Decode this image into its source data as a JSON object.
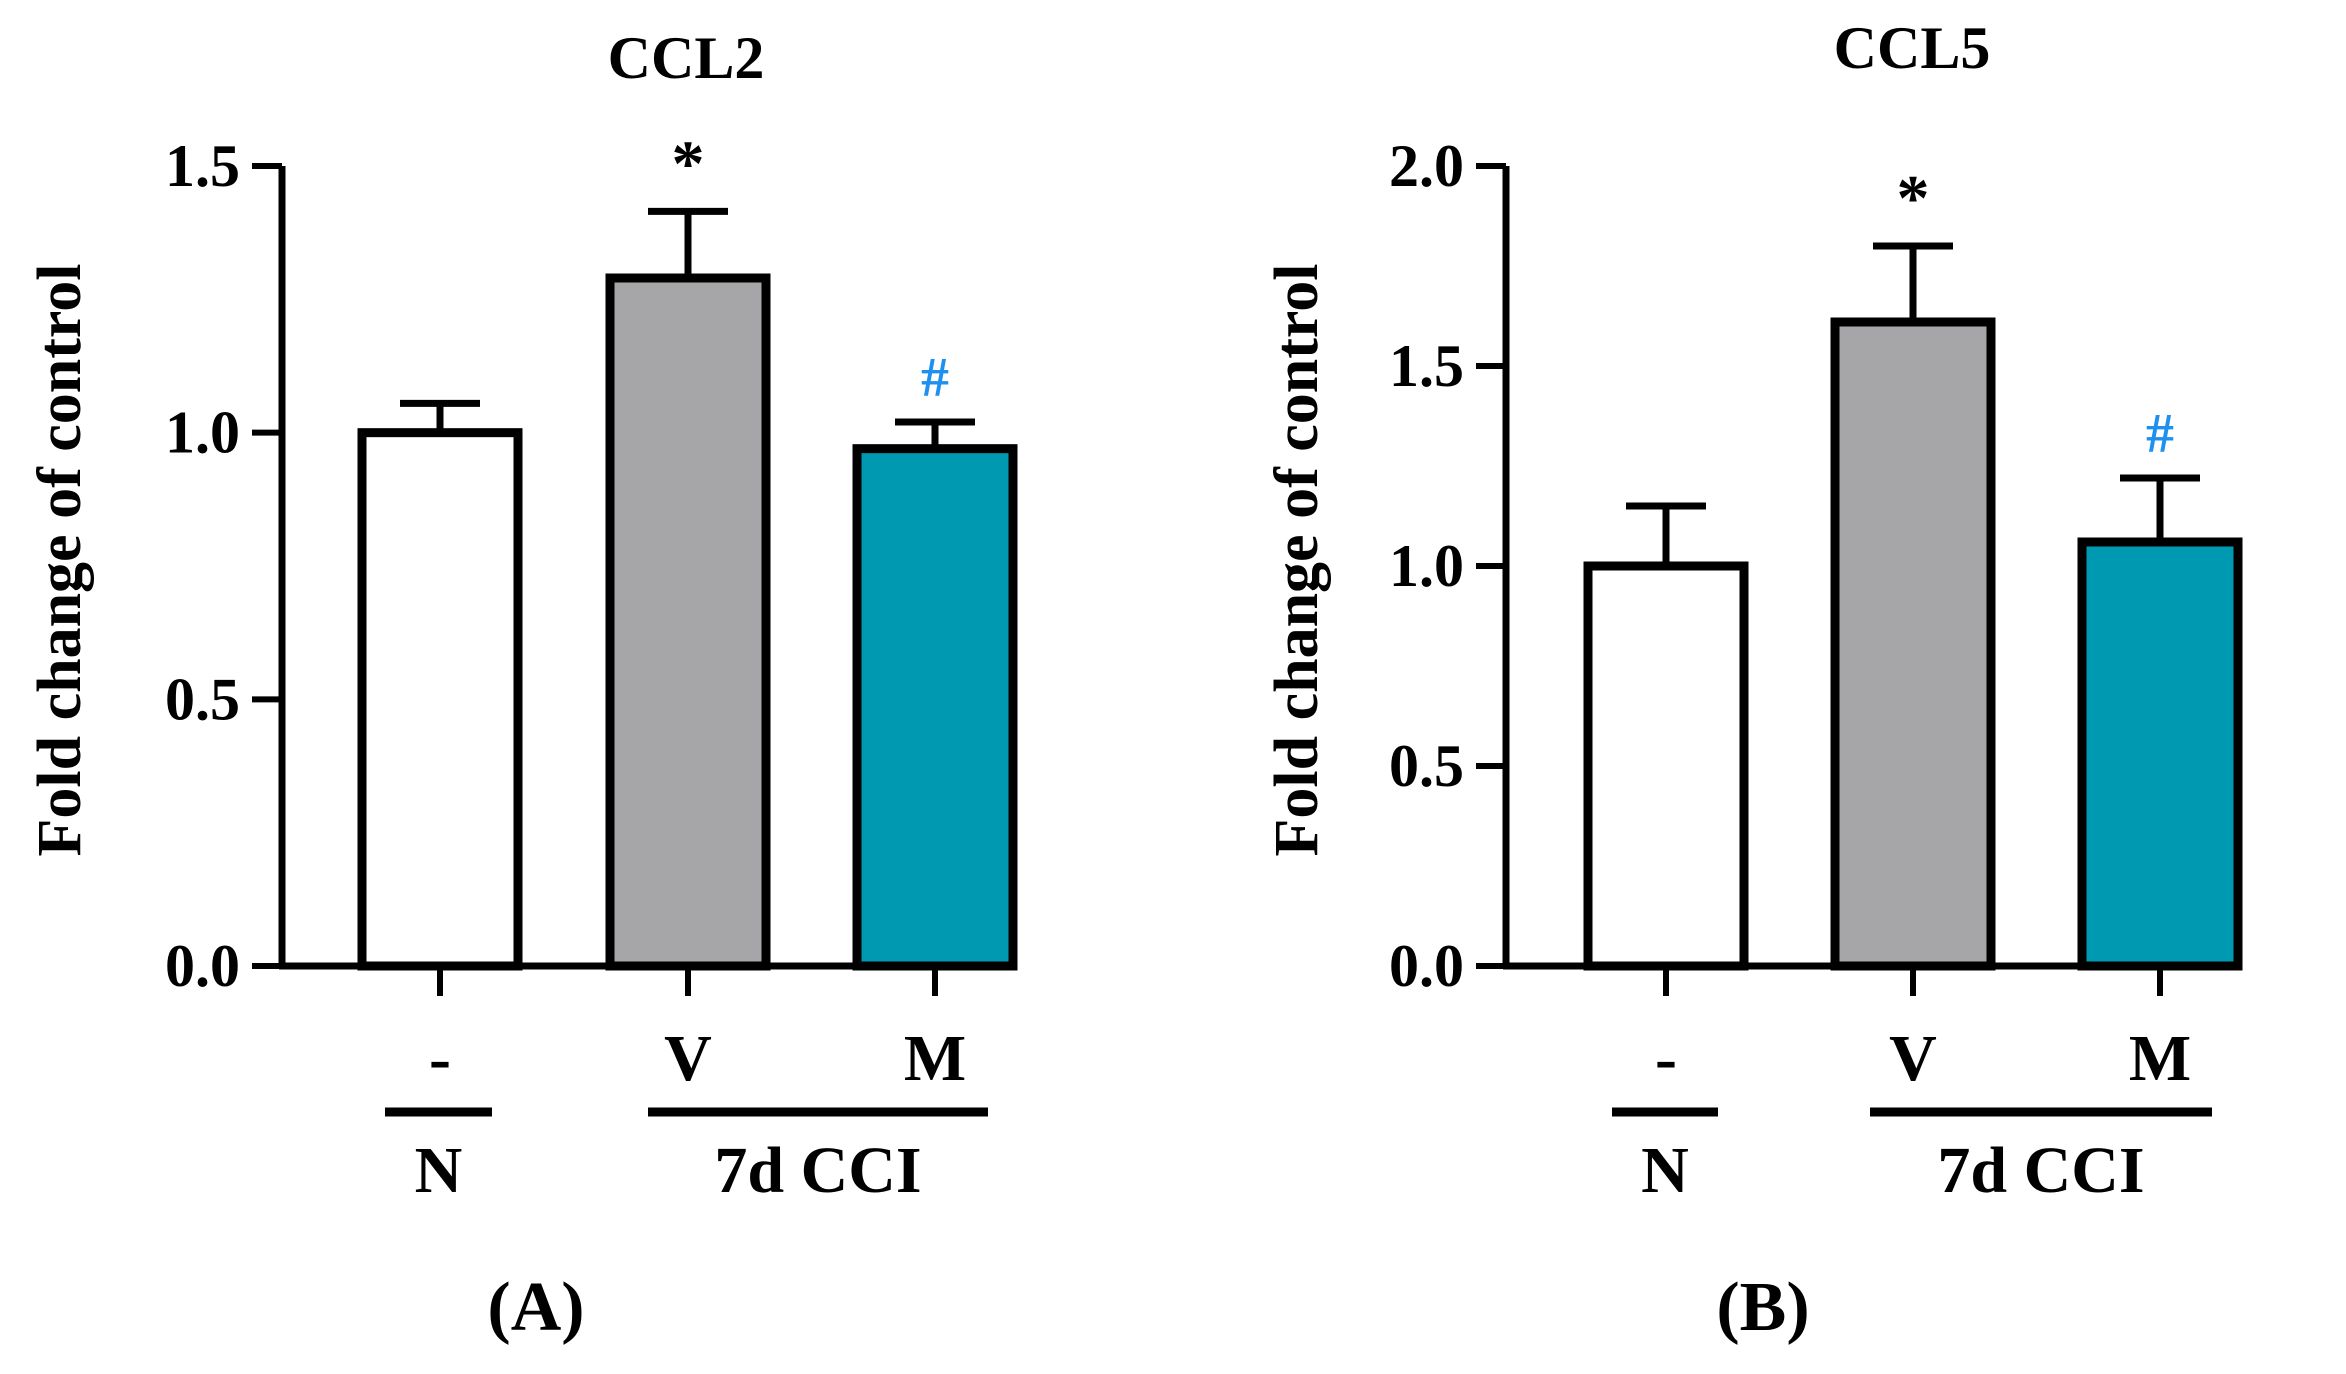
{
  "colors": {
    "axis": "#000000",
    "bar_N": "#ffffff",
    "bar_V": "#a6a6a9",
    "bar_M": "#0099b2",
    "sig_star": "#000000",
    "sig_hash": "#1e90f0"
  },
  "chart_data": [
    {
      "type": "bar",
      "panel_label": "(A)",
      "title": "CCL2",
      "ylabel": "Fold change of control",
      "xlabel": "",
      "ylim": [
        0,
        1.5
      ],
      "yticks": [
        "0.0",
        "0.5",
        "1.0",
        "1.5"
      ],
      "categories": [
        "-",
        "V",
        "M"
      ],
      "values": [
        1.0,
        1.29,
        0.97
      ],
      "errors": [
        0.055,
        0.125,
        0.05
      ],
      "bar_color_keys": [
        "bar_N",
        "bar_V",
        "bar_M"
      ],
      "annotations": [
        "",
        "*",
        "#"
      ],
      "annotation_color_keys": [
        "",
        "sig_star",
        "sig_hash"
      ],
      "groups": [
        {
          "label": "N",
          "categories": [
            0
          ]
        },
        {
          "label": "7d CCI",
          "categories": [
            1,
            2
          ]
        }
      ]
    },
    {
      "type": "bar",
      "panel_label": "(B)",
      "title": "CCL5",
      "ylabel": "Fold change of control",
      "xlabel": "",
      "ylim": [
        0,
        2.0
      ],
      "yticks": [
        "0.0",
        "0.5",
        "1.0",
        "1.5",
        "2.0"
      ],
      "categories": [
        "-",
        "V",
        "M"
      ],
      "values": [
        1.0,
        1.61,
        1.06
      ],
      "errors": [
        0.15,
        0.19,
        0.16
      ],
      "bar_color_keys": [
        "bar_N",
        "bar_V",
        "bar_M"
      ],
      "annotations": [
        "",
        "*",
        "#"
      ],
      "annotation_color_keys": [
        "",
        "sig_star",
        "sig_hash"
      ],
      "groups": [
        {
          "label": "N",
          "categories": [
            0
          ]
        },
        {
          "label": "7d CCI",
          "categories": [
            1,
            2
          ]
        }
      ]
    }
  ]
}
